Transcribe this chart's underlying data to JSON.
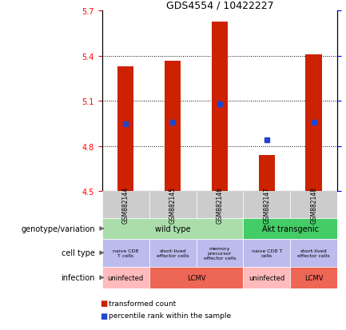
{
  "title": "GDS4554 / 10422227",
  "samples": [
    "GSM882144",
    "GSM882145",
    "GSM882146",
    "GSM882147",
    "GSM882148"
  ],
  "bar_values": [
    5.33,
    5.37,
    5.63,
    4.74,
    5.41
  ],
  "bar_base": 4.5,
  "percentile_values": [
    4.95,
    4.96,
    5.08,
    4.84,
    4.96
  ],
  "ylim_left": [
    4.5,
    5.7
  ],
  "yticks_left": [
    4.5,
    4.8,
    5.1,
    5.4,
    5.7
  ],
  "bar_color": "#cc2200",
  "percentile_color": "#2244cc",
  "genotype_configs": [
    {
      "label": "wild type",
      "start": 0,
      "end": 3,
      "color": "#aaddaa"
    },
    {
      "label": "Akt transgenic",
      "start": 3,
      "end": 5,
      "color": "#44cc66"
    }
  ],
  "cell_type_labels": [
    "naive CD8\nT cells",
    "short-lived\neffector cells",
    "memory\nprecursor\neffector cells",
    "naive CD8 T\ncells",
    "short-lived\neffector cells"
  ],
  "cell_type_color": "#bbbbee",
  "infection_configs": [
    {
      "label": "uninfected",
      "start": 0,
      "end": 1,
      "color": "#ffbbbb"
    },
    {
      "label": "LCMV",
      "start": 1,
      "end": 3,
      "color": "#ee6655"
    },
    {
      "label": "uninfected",
      "start": 3,
      "end": 4,
      "color": "#ffbbbb"
    },
    {
      "label": "LCMV",
      "start": 4,
      "end": 5,
      "color": "#ee6655"
    }
  ],
  "sample_col_color": "#cccccc",
  "row_labels": [
    "genotype/variation",
    "cell type",
    "infection"
  ],
  "legend_items": [
    {
      "color": "#cc2200",
      "label": "transformed count"
    },
    {
      "color": "#2244cc",
      "label": "percentile rank within the sample"
    }
  ]
}
